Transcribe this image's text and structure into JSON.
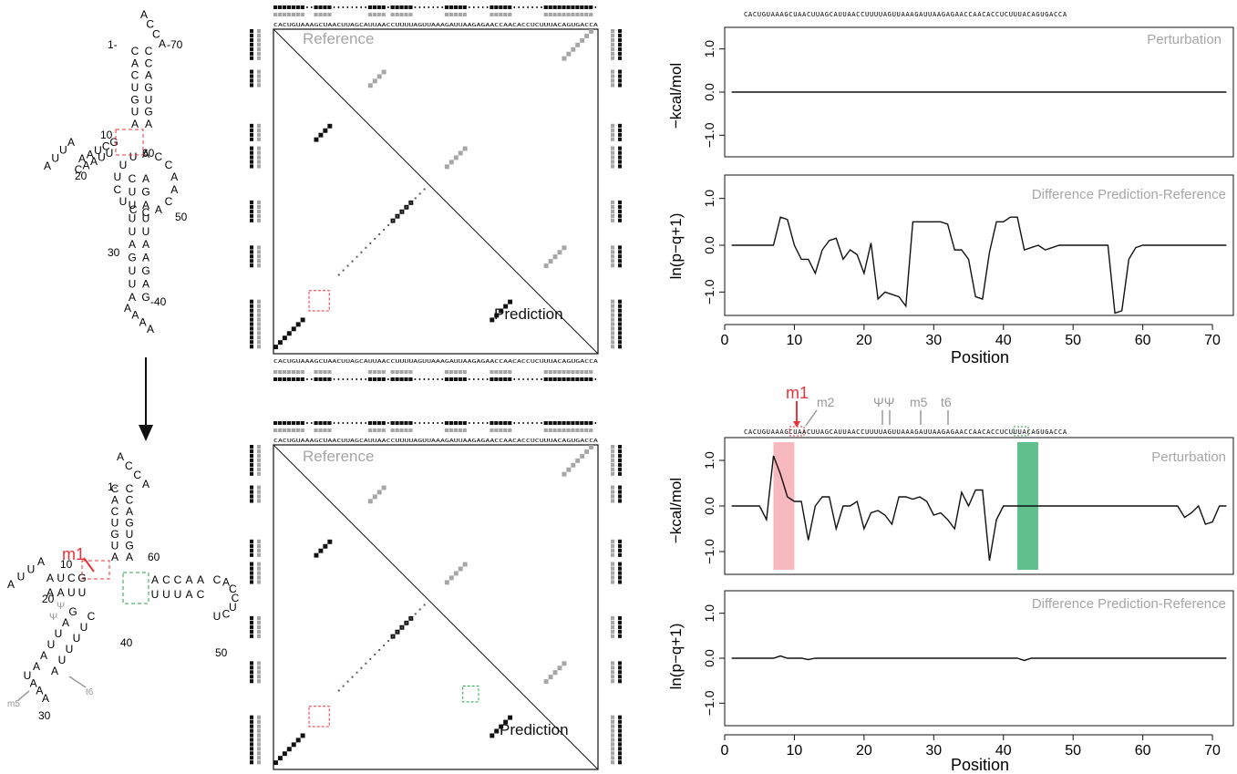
{
  "sequence": "CACUGUAAAGCUAACUUAGCAUUAACCUUUUAGUUAAAGAUUAAGAGAACCAACACCUCUUUACAGUGACCA",
  "structure_top": {
    "labels": [
      {
        "text": "1-",
        "near": "5' end"
      },
      {
        "text": "-70",
        "near": "3' end"
      },
      {
        "text": "10",
        "near": "D-arm"
      },
      {
        "text": "20",
        "near": "D-arm"
      },
      {
        "text": "60",
        "near": "T-arm"
      },
      {
        "text": "50",
        "near": "T-arm"
      },
      {
        "text": "30",
        "near": "anticodon"
      },
      {
        "text": "-40",
        "near": "anticodon"
      }
    ]
  },
  "structure_bottom": {
    "labels": [
      {
        "text": "1-"
      },
      {
        "text": "10"
      },
      {
        "text": "20"
      },
      {
        "text": "60"
      },
      {
        "text": "40"
      },
      {
        "text": "50"
      },
      {
        "text": "30"
      }
    ],
    "mod_labels": [
      {
        "text": "m1",
        "color": "#e8333a"
      },
      {
        "text": "Ψ",
        "color": "#999999"
      },
      {
        "text": "Ψ",
        "color": "#999999"
      },
      {
        "text": "m5",
        "color": "#999999"
      },
      {
        "text": "t6",
        "color": "#999999"
      }
    ]
  },
  "dotplot": {
    "reference_label": "Reference",
    "prediction_label": "Prediction"
  },
  "plots": {
    "top_perturbation": {
      "title": "Perturbation",
      "ylabel": "−kcal/mol",
      "yticks": [
        "1.0",
        "0.0",
        "−1.0"
      ],
      "values": [
        0,
        0,
        0,
        0,
        0,
        0,
        0,
        0,
        0,
        0,
        0,
        0,
        0,
        0,
        0,
        0,
        0,
        0,
        0,
        0,
        0,
        0,
        0,
        0,
        0,
        0,
        0,
        0,
        0,
        0,
        0,
        0,
        0,
        0,
        0,
        0,
        0,
        0,
        0,
        0,
        0,
        0,
        0,
        0,
        0,
        0,
        0,
        0,
        0,
        0,
        0,
        0,
        0,
        0,
        0,
        0,
        0,
        0,
        0,
        0,
        0,
        0,
        0,
        0,
        0,
        0,
        0,
        0,
        0,
        0,
        0,
        0
      ]
    },
    "top_difference": {
      "title": "Difference Prediction-Reference",
      "ylabel": "ln(p−q+1)",
      "yticks": [
        "1.0",
        "0.0",
        "−1.0"
      ],
      "values": [
        0,
        0,
        0,
        0,
        0,
        0,
        0,
        0.6,
        0.55,
        0,
        -0.3,
        -0.3,
        -0.6,
        -0.1,
        0.1,
        0.15,
        -0.3,
        -0.1,
        -0.2,
        -0.6,
        0.05,
        -1.15,
        -1.0,
        -1.05,
        -1.1,
        -1.3,
        0.5,
        0.5,
        0.5,
        0.5,
        0.5,
        0.45,
        -0.1,
        -0.1,
        -0.3,
        -1.1,
        -1.15,
        -0.15,
        0.5,
        0.5,
        0.6,
        0.6,
        -0.1,
        -0.05,
        0,
        -0.1,
        -0.05,
        0,
        0,
        0,
        0,
        0,
        0,
        0,
        0,
        -1.45,
        -1.4,
        -0.3,
        -0.05,
        0,
        0,
        0,
        0,
        0,
        0,
        0,
        0,
        0,
        0,
        0,
        0,
        0
      ]
    },
    "bottom_perturbation": {
      "title": "Perturbation",
      "ylabel": "−kcal/mol",
      "yticks": [
        "1.0",
        "0.0",
        "−1.0"
      ],
      "values": [
        0,
        0,
        0,
        0,
        0,
        -0.3,
        1.1,
        0.7,
        0.2,
        0.1,
        0.1,
        -0.75,
        0,
        0.2,
        0.2,
        -0.5,
        0,
        0,
        0.1,
        -0.5,
        -0.15,
        -0.1,
        -0.2,
        -0.4,
        0.2,
        0.2,
        0.15,
        0.2,
        0.1,
        -0.2,
        -0.15,
        -0.3,
        -0.5,
        0.3,
        0,
        0.35,
        0.35,
        -1.2,
        -0.3,
        0,
        0,
        0,
        0,
        0,
        0,
        0,
        0,
        0,
        0,
        0,
        0,
        0,
        0,
        0,
        0,
        0,
        0,
        0,
        0,
        0,
        0,
        0,
        0,
        0,
        0,
        -0.25,
        -0.15,
        0,
        -0.4,
        -0.35,
        0,
        0
      ],
      "highlight_red": [
        7,
        10
      ],
      "highlight_green": [
        42,
        45
      ]
    },
    "bottom_difference": {
      "title": "Difference Prediction-Reference",
      "ylabel": "ln(p−q+1)",
      "yticks": [
        "1.0",
        "0.0",
        "−1.0"
      ],
      "values": [
        0,
        0,
        0,
        0,
        0,
        0,
        0,
        0.05,
        0,
        0,
        0,
        -0.03,
        0,
        0,
        0,
        0,
        0,
        0,
        0,
        0,
        0,
        0,
        0,
        0,
        0,
        0,
        0,
        0,
        0,
        0,
        0,
        0,
        0,
        0,
        0,
        0,
        0,
        0,
        0,
        0,
        0,
        0,
        -0.05,
        0,
        0,
        0,
        0,
        0,
        0,
        0,
        0,
        0,
        0,
        0,
        0,
        0,
        0,
        0,
        0,
        0,
        0,
        0,
        0,
        0,
        0,
        0,
        0,
        0,
        0,
        0,
        0,
        0
      ]
    },
    "xlabel": "Position",
    "xticks": [
      "0",
      "10",
      "20",
      "30",
      "40",
      "50",
      "60",
      "70"
    ]
  },
  "mod_markers": [
    {
      "text": "m1",
      "color": "#e8333a"
    },
    {
      "text": "m2",
      "color": "#999999"
    },
    {
      "text": "ΨΨ",
      "color": "#999999"
    },
    {
      "text": "m5",
      "color": "#999999"
    },
    {
      "text": "t6",
      "color": "#999999"
    }
  ],
  "colors": {
    "gray": "#a6a6a6",
    "red": "#e8333a",
    "green": "#2aa44a",
    "pink_band": "#f7b8be",
    "green_band": "#5fc08e"
  }
}
